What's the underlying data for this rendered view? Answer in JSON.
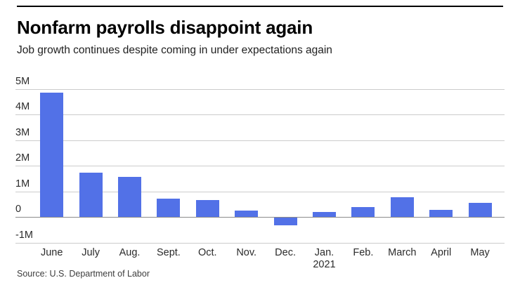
{
  "header": {
    "title": "Nonfarm payrolls disappoint again",
    "subtitle": "Job growth continues despite coming in under expectations again"
  },
  "chart_data": {
    "type": "bar",
    "title": "Nonfarm payrolls disappoint again",
    "subtitle": "Job growth continues despite coming in under expectations again",
    "categories": [
      "June",
      "July",
      "Aug.",
      "Sept.",
      "Oct.",
      "Nov.",
      "Dec.",
      "Jan.",
      "Feb.",
      "March",
      "April",
      "May"
    ],
    "x_second_line": [
      "",
      "",
      "",
      "",
      "",
      "",
      "",
      "2021",
      "",
      "",
      "",
      ""
    ],
    "values": [
      4.85,
      1.72,
      1.55,
      0.7,
      0.65,
      0.25,
      -0.3,
      0.2,
      0.38,
      0.76,
      0.28,
      0.56
    ],
    "unit": "M jobs",
    "y_ticks": [
      {
        "value": 5,
        "label": "5M"
      },
      {
        "value": 4,
        "label": "4M"
      },
      {
        "value": 3,
        "label": "3M"
      },
      {
        "value": 2,
        "label": "2M"
      },
      {
        "value": 1,
        "label": "1M"
      },
      {
        "value": 0,
        "label": "0"
      },
      {
        "value": -1,
        "label": "-1M"
      }
    ],
    "ylim": [
      -1,
      5
    ],
    "grid": true,
    "legend": "none",
    "xlabel": "",
    "ylabel": "",
    "bar_color": "#5271e7",
    "gridline_color": "#cccccc",
    "zero_line_color": "#8c8c8c"
  },
  "footer": {
    "source": "Source: U.S. Department of Labor"
  }
}
